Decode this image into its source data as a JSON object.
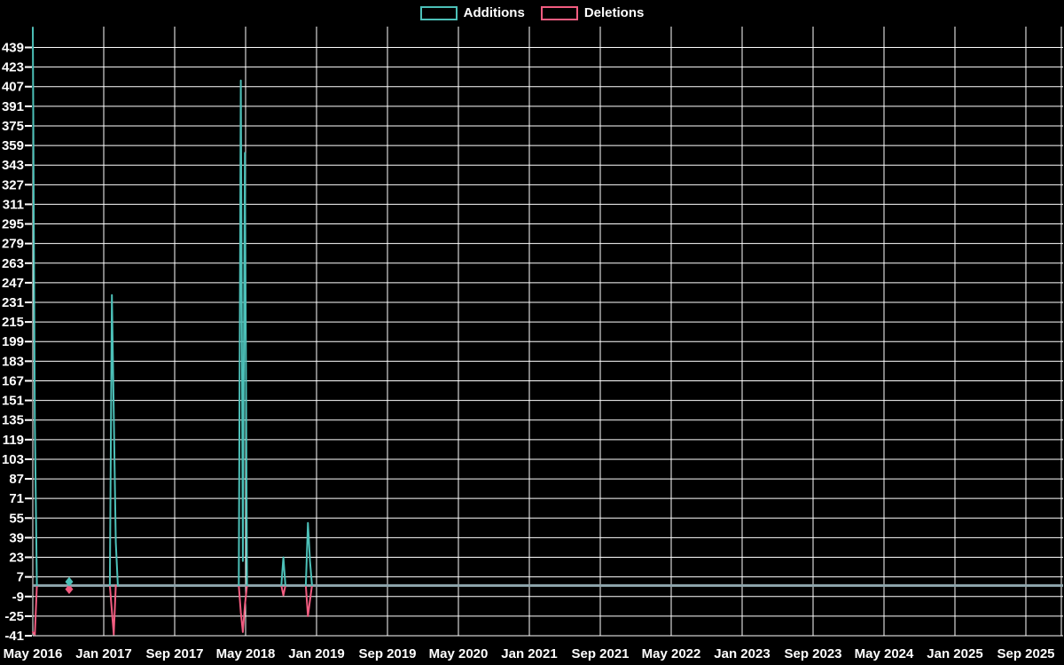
{
  "legend": {
    "position": "top-center",
    "items": [
      {
        "label": "Additions",
        "color": "#4cc0b8"
      },
      {
        "label": "Deletions",
        "color": "#f25c80"
      }
    ]
  },
  "chart_data": {
    "type": "line",
    "title": "",
    "background_color": "#000000",
    "grid": true,
    "gridline_color": "#ffffff",
    "zero_line_color": "#8fa6ad",
    "x_axis": {
      "start_date": "2016-05-01",
      "months_per_tick": 8,
      "tick_labels": [
        "May 2016",
        "Jan 2017",
        "Sep 2017",
        "May 2018",
        "Jan 2019",
        "Sep 2019",
        "May 2020",
        "Jan 2021",
        "Sep 2021",
        "May 2022",
        "Jan 2023",
        "Sep 2023",
        "May 2024",
        "Jan 2025",
        "Sep 2025"
      ]
    },
    "y_axis": {
      "min": -41,
      "max": 439,
      "step": 16,
      "top_value": 456,
      "tick_labels": [
        439,
        423,
        407,
        391,
        375,
        359,
        343,
        327,
        311,
        295,
        279,
        263,
        247,
        231,
        215,
        199,
        183,
        167,
        151,
        135,
        119,
        103,
        87,
        71,
        55,
        39,
        23,
        7,
        -9,
        -25,
        -41
      ]
    },
    "series": [
      {
        "name": "Additions",
        "color": "#4cc0b8",
        "segments": [
          [
            [
              "2016-05-01",
              455
            ],
            [
              "2016-05-08",
              132
            ],
            [
              "2016-05-15",
              0
            ]
          ],
          [
            [
              "2017-01-22",
              0
            ],
            [
              "2017-01-29",
              237
            ],
            [
              "2017-02-12",
              35
            ],
            [
              "2017-02-19",
              0
            ]
          ],
          [
            [
              "2018-04-08",
              0
            ],
            [
              "2018-04-15",
              412
            ],
            [
              "2018-04-22",
              20
            ],
            [
              "2018-04-29",
              353
            ],
            [
              "2018-05-06",
              0
            ]
          ],
          [
            [
              "2018-09-02",
              0
            ],
            [
              "2018-09-09",
              23
            ],
            [
              "2018-09-16",
              0
            ]
          ],
          [
            [
              "2018-11-25",
              0
            ],
            [
              "2018-12-02",
              51
            ],
            [
              "2018-12-09",
              20
            ],
            [
              "2018-12-16",
              0
            ]
          ]
        ],
        "isolated_points": [
          [
            "2016-09-04",
            3
          ]
        ]
      },
      {
        "name": "Deletions",
        "color": "#f25c80",
        "segments": [
          [
            [
              "2016-05-01",
              -38
            ],
            [
              "2016-05-08",
              -40
            ],
            [
              "2016-05-15",
              0
            ]
          ],
          [
            [
              "2017-01-22",
              0
            ],
            [
              "2017-01-29",
              -21
            ],
            [
              "2017-02-05",
              -40
            ],
            [
              "2017-02-12",
              0
            ]
          ],
          [
            [
              "2018-04-08",
              0
            ],
            [
              "2018-04-15",
              -22
            ],
            [
              "2018-04-22",
              -38
            ],
            [
              "2018-04-29",
              -16
            ],
            [
              "2018-05-06",
              0
            ]
          ],
          [
            [
              "2018-09-02",
              0
            ],
            [
              "2018-09-09",
              -8
            ],
            [
              "2018-09-16",
              0
            ]
          ],
          [
            [
              "2018-11-25",
              0
            ],
            [
              "2018-12-02",
              -25
            ],
            [
              "2018-12-09",
              -12
            ],
            [
              "2018-12-16",
              0
            ]
          ]
        ],
        "isolated_points": [
          [
            "2016-09-04",
            -3
          ]
        ]
      }
    ]
  }
}
